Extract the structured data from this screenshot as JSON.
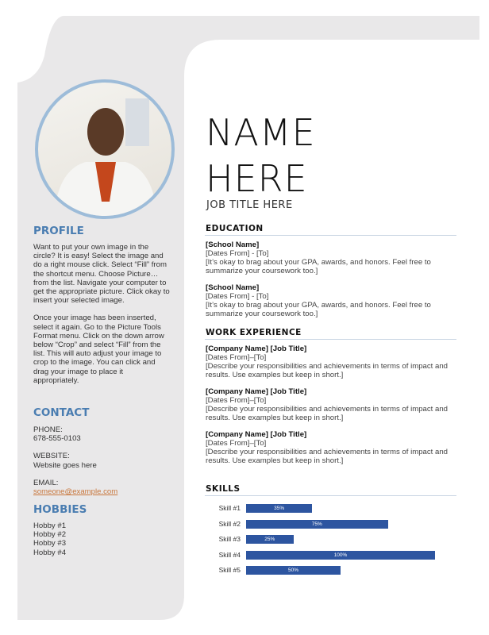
{
  "colors": {
    "sidebar": "#e9e8e9",
    "accent": "#4a7db1",
    "photo_border": "#9dbcd9",
    "bar": "#2d55a0",
    "link": "#c8773d"
  },
  "header": {
    "name_line1": "NAME",
    "name_line2": "HERE",
    "job_title": "JOB TITLE HERE"
  },
  "profile": {
    "heading": "PROFILE",
    "paragraphs": [
      "Want to put your own image in the circle?  It is easy!  Select the image and do a right mouse click.  Select “Fill” from the shortcut menu.  Choose Picture… from the list.  Navigate your computer to get the appropriate picture.  Click okay to insert your selected image.",
      "Once your image has been inserted, select it again.  Go to the Picture Tools Format menu. Click on the down arrow below “Crop” and select “Fill” from the list.  This will auto adjust your image to crop to the image.  You can click and drag your image to place it appropriately."
    ]
  },
  "contact": {
    "heading": "CONTACT",
    "phone_label": "PHONE:",
    "phone": "678-555-0103",
    "website_label": "WEBSITE:",
    "website": "Website goes here",
    "email_label": "EMAIL:",
    "email": "someone@example.com"
  },
  "hobbies": {
    "heading": "HOBBIES",
    "items": [
      "Hobby #1",
      "Hobby #2",
      "Hobby #3",
      "Hobby #4"
    ]
  },
  "education": {
    "heading": "EDUCATION",
    "items": [
      {
        "school": "[School Name]",
        "dates": "[Dates From] - [To]",
        "desc": "[It’s okay to brag about your GPA, awards, and honors. Feel free to summarize your coursework too.]"
      },
      {
        "school": "[School Name]",
        "dates": "[Dates From] - [To]",
        "desc": "[It’s okay to brag about your GPA, awards, and honors. Feel free to summarize your coursework too.]"
      }
    ]
  },
  "work": {
    "heading": "WORK EXPERIENCE",
    "items": [
      {
        "title": "[Company  Name]  [Job Title]",
        "dates": "[Dates From]–[To]",
        "desc": "[Describe your responsibilities and achievements in terms of impact and results. Use examples but keep in short.]"
      },
      {
        "title": "[Company  Name]  [Job Title]",
        "dates": "[Dates From]–[To]",
        "desc": "[Describe your responsibilities and achievements in terms of impact and results. Use examples but keep in short.]"
      },
      {
        "title": "[Company  Name]  [Job Title]",
        "dates": "[Dates From]–[To]",
        "desc": "[Describe your responsibilities and achievements in terms of impact and results. Use examples but keep in short.]"
      }
    ]
  },
  "skills": {
    "heading": "SKILLS"
  },
  "chart_data": {
    "type": "bar",
    "orientation": "horizontal",
    "categories": [
      "Skill #1",
      "Skill #2",
      "Skill #3",
      "Skill #4",
      "Skill #5"
    ],
    "values": [
      35,
      75,
      25,
      100,
      50
    ],
    "data_labels": [
      "35%",
      "75%",
      "25%",
      "100%",
      "50%"
    ],
    "xlim": [
      0,
      100
    ],
    "grid": false
  }
}
